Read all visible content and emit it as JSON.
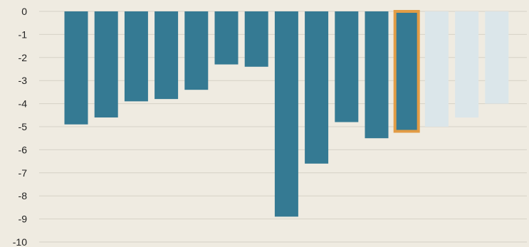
{
  "chart_data": {
    "type": "bar",
    "title": "",
    "xlabel": "",
    "ylabel": "",
    "ylim": [
      -10,
      0
    ],
    "y_ticks": [
      "0",
      "-1",
      "-2",
      "-3",
      "-4",
      "-5",
      "-6",
      "-7",
      "-8",
      "-9",
      "-10"
    ],
    "grid": true,
    "legend": "none",
    "values": [
      -4.9,
      -4.6,
      -3.9,
      -3.8,
      -3.4,
      -2.3,
      -2.4,
      -8.9,
      -6.6,
      -4.8,
      -5.5,
      -5.2,
      -5.0,
      -4.6,
      -4.0
    ],
    "bar_states": [
      "actual",
      "actual",
      "actual",
      "actual",
      "actual",
      "actual",
      "actual",
      "actual",
      "actual",
      "actual",
      "actual",
      "highlighted",
      "projected",
      "projected",
      "projected"
    ],
    "colors": {
      "background": "#efebe1",
      "actual": "#357a93",
      "projected": "#dbe6ea",
      "highlight_outline": "#e29c45",
      "grid": "#d6d2c6"
    }
  }
}
